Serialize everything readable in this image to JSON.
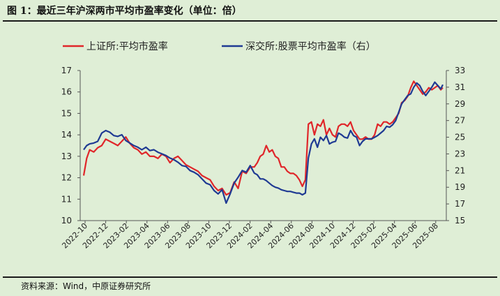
{
  "title": "图 1：最近三年沪深两市平均市盈率变化（单位：倍）",
  "source": "资料来源：Wind，中原证券研究所",
  "chart_data": {
    "type": "line",
    "xlabel": "",
    "ylabel": "",
    "x_ticks": [
      "2022-10",
      "2022-12",
      "2023-02",
      "2023-04",
      "2023-06",
      "2023-08",
      "2023-10",
      "2023-12",
      "2024-02",
      "2024-04",
      "2024-06",
      "2024-08",
      "2024-10",
      "2024-12",
      "2025-02",
      "2025-04",
      "2025-06",
      "2025-08"
    ],
    "y_left": {
      "min": 10,
      "max": 17,
      "ticks": [
        10,
        11,
        12,
        13,
        14,
        15,
        16,
        17
      ]
    },
    "y_right": {
      "min": 15,
      "max": 33,
      "ticks": [
        15,
        17,
        19,
        21,
        23,
        25,
        27,
        29,
        31,
        33
      ]
    },
    "series": [
      {
        "name": "上证所:平均市盈率",
        "axis": "left",
        "color": "#e0262a",
        "x": [
          0,
          0.3,
          0.6,
          1,
          1.4,
          1.8,
          2.2,
          2.6,
          3,
          3.4,
          3.8,
          4.2,
          4.6,
          5,
          5.4,
          5.8,
          6.2,
          6.6,
          7,
          7.4,
          7.8,
          8.2,
          8.6,
          9,
          9.4,
          9.8,
          10.2,
          10.6,
          11,
          11.4,
          11.8,
          12.2,
          12.6,
          13,
          13.4,
          13.8,
          14.2,
          14.6,
          15,
          15.4,
          15.8,
          16.2,
          16.6,
          17,
          17.3,
          17.6,
          17.9,
          18.2,
          18.5,
          18.8,
          19.1,
          19.4,
          19.7,
          20,
          20.3,
          20.6,
          20.9,
          21.2,
          21.5,
          21.8,
          22.1,
          22.4,
          22.7,
          23,
          23.3,
          23.6,
          23.9,
          24.2,
          24.5,
          24.8,
          25.1,
          25.4,
          25.7,
          26,
          26.3,
          26.6,
          26.9,
          27.2,
          27.5,
          27.8,
          28.1,
          28.4,
          28.7,
          29,
          29.3,
          29.6,
          29.9,
          30.2,
          30.5,
          30.8,
          31.1,
          31.4,
          31.7,
          32,
          32.3,
          32.6,
          32.9,
          33.2,
          33.5,
          33.8,
          34.1,
          34.4,
          34.7,
          35,
          35.3,
          35.6,
          35.8
        ],
        "values": [
          12.1,
          12.9,
          13.3,
          13.2,
          13.4,
          13.5,
          13.8,
          13.7,
          13.6,
          13.5,
          13.7,
          13.9,
          13.6,
          13.4,
          13.3,
          13.1,
          13.2,
          13.0,
          13.0,
          12.9,
          13.1,
          13.0,
          12.7,
          12.9,
          13.0,
          12.8,
          12.6,
          12.5,
          12.4,
          12.3,
          12.1,
          12.0,
          11.9,
          11.6,
          11.4,
          11.5,
          11.2,
          11.3,
          11.8,
          11.5,
          12.3,
          12.2,
          12.5,
          12.5,
          12.7,
          13.0,
          13.1,
          13.5,
          13.2,
          13.3,
          13.0,
          12.9,
          12.5,
          12.5,
          12.3,
          12.2,
          12.2,
          12.1,
          11.9,
          11.6,
          11.9,
          14.5,
          14.6,
          14.0,
          14.5,
          14.4,
          14.7,
          14.0,
          14.3,
          14.0,
          13.9,
          14.4,
          14.5,
          14.5,
          14.4,
          14.6,
          14.2,
          14.0,
          13.8,
          13.8,
          13.9,
          13.8,
          13.8,
          14.0,
          14.5,
          14.4,
          14.6,
          14.6,
          14.5,
          14.6,
          14.8,
          15.0,
          15.5,
          15.6,
          15.8,
          16.2,
          16.5,
          16.3,
          16.1,
          15.9,
          16.0,
          16.2,
          16.1,
          16.2,
          16.3,
          16.1,
          16.2
        ]
      },
      {
        "name": "深交所:股票平均市盈率（右）",
        "axis": "right",
        "color": "#1f3a93",
        "x": [
          0,
          0.3,
          0.6,
          1,
          1.4,
          1.8,
          2.2,
          2.6,
          3,
          3.4,
          3.8,
          4.2,
          4.6,
          5,
          5.4,
          5.8,
          6.2,
          6.6,
          7,
          7.4,
          7.8,
          8.2,
          8.6,
          9,
          9.4,
          9.8,
          10.2,
          10.6,
          11,
          11.4,
          11.8,
          12.2,
          12.6,
          13,
          13.4,
          13.8,
          14.2,
          14.6,
          15,
          15.4,
          15.8,
          16.2,
          16.6,
          17,
          17.3,
          17.6,
          17.9,
          18.2,
          18.5,
          18.8,
          19.1,
          19.4,
          19.7,
          20,
          20.3,
          20.6,
          20.9,
          21.2,
          21.5,
          21.8,
          22.1,
          22.4,
          22.7,
          23,
          23.3,
          23.6,
          23.9,
          24.2,
          24.5,
          24.8,
          25.1,
          25.4,
          25.7,
          26,
          26.3,
          26.6,
          26.9,
          27.2,
          27.5,
          27.8,
          28.1,
          28.4,
          28.7,
          29,
          29.3,
          29.6,
          29.9,
          30.2,
          30.5,
          30.8,
          31.1,
          31.4,
          31.7,
          32,
          32.3,
          32.6,
          32.9,
          33.2,
          33.5,
          33.8,
          34.1,
          34.4,
          34.7,
          35,
          35.3,
          35.6,
          35.8
        ],
        "values": [
          23.5,
          24.0,
          24.2,
          24.3,
          24.5,
          25.5,
          25.8,
          25.6,
          25.2,
          25.1,
          25.3,
          24.6,
          24.3,
          24.0,
          23.8,
          23.5,
          23.8,
          23.4,
          23.5,
          23.2,
          23.0,
          22.8,
          22.5,
          22.3,
          22.0,
          21.6,
          21.5,
          21.0,
          20.8,
          20.5,
          20.0,
          19.5,
          19.3,
          18.6,
          18.2,
          18.7,
          17.1,
          18.2,
          19.5,
          20.2,
          21.0,
          20.8,
          21.6,
          20.7,
          20.5,
          20.0,
          20.0,
          19.8,
          19.5,
          19.2,
          19.0,
          18.9,
          18.7,
          18.6,
          18.5,
          18.5,
          18.4,
          18.3,
          18.3,
          18.1,
          18.3,
          22.5,
          24.2,
          24.8,
          23.8,
          25.0,
          24.6,
          25.2,
          24.2,
          24.4,
          24.5,
          25.5,
          25.3,
          25.0,
          24.9,
          25.8,
          25.2,
          25.0,
          24.0,
          24.5,
          24.8,
          24.8,
          24.8,
          25.0,
          25.2,
          25.5,
          25.8,
          26.3,
          26.2,
          26.5,
          27.0,
          28.0,
          29.0,
          29.5,
          30.0,
          30.2,
          31.0,
          31.5,
          31.2,
          30.5,
          30.0,
          30.5,
          31.0,
          31.6,
          31.2,
          30.8,
          31.3
        ]
      }
    ]
  }
}
